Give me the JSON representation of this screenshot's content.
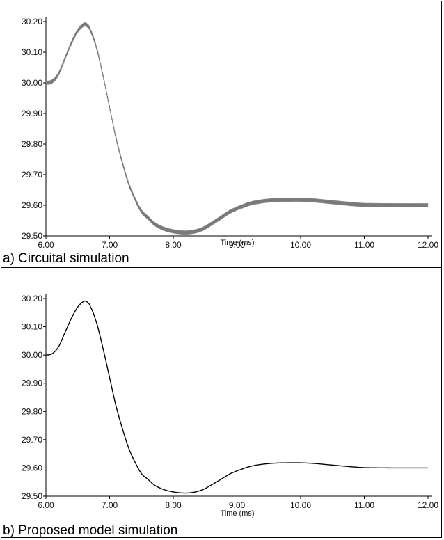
{
  "chart_data": [
    {
      "type": "line",
      "caption": "a) Circuital simulation",
      "xlabel": "Time  (ms)",
      "ylabel": "",
      "xlim": [
        6.0,
        12.0
      ],
      "ylim": [
        29.5,
        30.2
      ],
      "x_ticks": [
        "6.00",
        "7.00",
        "8.00",
        "9.00",
        "10.00",
        "11.00",
        "12.00"
      ],
      "y_ticks": [
        "30.20",
        "30.10",
        "30.00",
        "29.90",
        "29.80",
        "29.70",
        "29.60",
        "29.50"
      ],
      "grid": false,
      "series": [
        {
          "color": "#7a7a7a",
          "ripple": 0.006,
          "x": [
            6.0,
            6.1,
            6.2,
            6.3,
            6.4,
            6.5,
            6.6,
            6.65,
            6.7,
            6.8,
            6.9,
            7.0,
            7.1,
            7.2,
            7.3,
            7.4,
            7.5,
            7.6,
            7.7,
            7.8,
            7.9,
            8.0,
            8.1,
            8.2,
            8.3,
            8.4,
            8.5,
            8.6,
            8.7,
            8.8,
            8.9,
            9.0,
            9.2,
            9.4,
            9.6,
            9.8,
            10.0,
            10.2,
            10.4,
            10.6,
            10.8,
            11.0,
            11.5,
            12.0
          ],
          "y": [
            30.0,
            30.005,
            30.03,
            30.08,
            30.13,
            30.17,
            30.19,
            30.187,
            30.17,
            30.11,
            30.02,
            29.92,
            29.82,
            29.74,
            29.67,
            29.62,
            29.58,
            29.56,
            29.54,
            29.528,
            29.52,
            29.515,
            29.512,
            29.511,
            29.513,
            29.518,
            29.527,
            29.54,
            29.553,
            29.567,
            29.58,
            29.59,
            29.605,
            29.613,
            29.617,
            29.618,
            29.618,
            29.616,
            29.612,
            29.608,
            29.604,
            29.601,
            29.6,
            29.6
          ]
        }
      ]
    },
    {
      "type": "line",
      "caption": "b) Proposed model simulation",
      "xlabel": "Time  (ms)",
      "ylabel": "",
      "xlim": [
        6.0,
        12.0
      ],
      "ylim": [
        29.5,
        30.2
      ],
      "x_ticks": [
        "6.00",
        "7.00",
        "8.00",
        "9.00",
        "10.00",
        "11.00",
        "12.00"
      ],
      "y_ticks": [
        "30.20",
        "30.10",
        "30.00",
        "29.90",
        "29.80",
        "29.70",
        "29.60",
        "29.50"
      ],
      "grid": false,
      "series": [
        {
          "color": "#000000",
          "ripple": 0,
          "x": [
            6.0,
            6.1,
            6.2,
            6.3,
            6.4,
            6.5,
            6.6,
            6.65,
            6.7,
            6.8,
            6.9,
            7.0,
            7.1,
            7.2,
            7.3,
            7.4,
            7.5,
            7.6,
            7.7,
            7.8,
            7.9,
            8.0,
            8.1,
            8.2,
            8.3,
            8.4,
            8.5,
            8.6,
            8.7,
            8.8,
            8.9,
            9.0,
            9.2,
            9.4,
            9.6,
            9.8,
            10.0,
            10.2,
            10.4,
            10.6,
            10.8,
            11.0,
            11.5,
            12.0
          ],
          "y": [
            30.0,
            30.005,
            30.03,
            30.08,
            30.13,
            30.17,
            30.19,
            30.187,
            30.17,
            30.11,
            30.02,
            29.92,
            29.82,
            29.74,
            29.67,
            29.62,
            29.58,
            29.56,
            29.54,
            29.528,
            29.52,
            29.515,
            29.512,
            29.511,
            29.513,
            29.518,
            29.527,
            29.54,
            29.553,
            29.567,
            29.58,
            29.59,
            29.605,
            29.613,
            29.617,
            29.618,
            29.618,
            29.616,
            29.612,
            29.608,
            29.604,
            29.601,
            29.6,
            29.6
          ]
        }
      ]
    }
  ]
}
